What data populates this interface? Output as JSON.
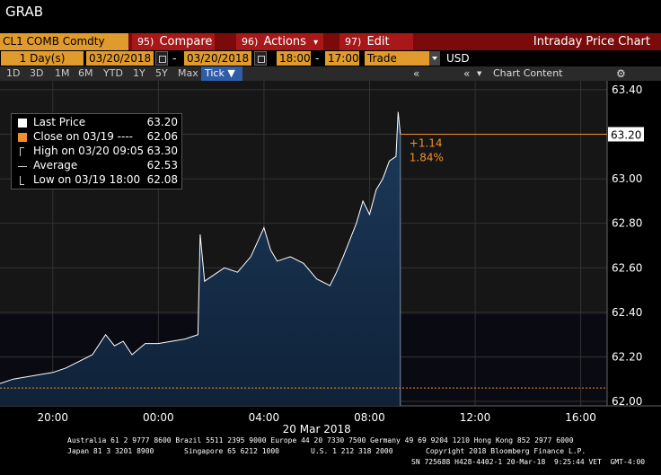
{
  "top": {
    "title": "GRAB"
  },
  "cmdbar": {
    "ticker": "CL1 COMB Comdty",
    "menus": [
      {
        "num": "95)",
        "label": "Compare"
      },
      {
        "num": "96)",
        "label": "Actions"
      },
      {
        "num": "97)",
        "label": "Edit"
      }
    ],
    "function_title": "Intraday Price Chart"
  },
  "range": {
    "days": "1",
    "days_unit": "Day(s)",
    "start_date": "03/20/2018",
    "sep": "-",
    "end_date": "03/20/2018",
    "start_time": "18:00",
    "time_sep": "-",
    "end_time": "17:00",
    "mode": "Trade",
    "currency": "USD"
  },
  "tabs": {
    "periods": [
      "1D",
      "3D",
      "1M",
      "6M",
      "YTD",
      "1Y",
      "5Y",
      "Max"
    ],
    "active": "Tick",
    "nav_left": "«",
    "nav_right": "«",
    "chart_content": "Chart Content"
  },
  "legend": {
    "items": [
      {
        "label": "Last Price",
        "value": "63.20",
        "color": "#ffffff"
      },
      {
        "label": "Close on 03/19 ----",
        "value": "62.06",
        "color": "#f0902a"
      },
      {
        "label": "High on 03/20 09:05",
        "value": "63.30",
        "color": "#cfcfcf"
      },
      {
        "label": "Average",
        "value": "62.53",
        "color": "#cfcfcf"
      },
      {
        "label": "Low on 03/19 18:00",
        "value": "62.08",
        "color": "#cfcfcf"
      }
    ]
  },
  "chart_data": {
    "type": "area",
    "series": [
      {
        "name": "Last Price",
        "x": [
          "18:00",
          "18:30",
          "19:00",
          "19:30",
          "20:00",
          "20:30",
          "21:00",
          "21:30",
          "22:00",
          "22:20",
          "22:40",
          "23:00",
          "23:30",
          "00:00",
          "00:30",
          "01:00",
          "01:30",
          "01:35",
          "01:45",
          "02:00",
          "02:30",
          "03:00",
          "03:30",
          "04:00",
          "04:15",
          "04:30",
          "05:00",
          "05:30",
          "06:00",
          "06:30",
          "06:45",
          "07:00",
          "07:30",
          "07:45",
          "08:00",
          "08:15",
          "08:30",
          "08:45",
          "09:00",
          "09:05",
          "09:10"
        ],
        "values": [
          62.08,
          62.1,
          62.11,
          62.12,
          62.13,
          62.15,
          62.18,
          62.21,
          62.3,
          62.25,
          62.27,
          62.21,
          62.26,
          62.26,
          62.27,
          62.28,
          62.3,
          62.75,
          62.54,
          62.56,
          62.6,
          62.58,
          62.65,
          62.78,
          62.68,
          62.63,
          62.65,
          62.62,
          62.55,
          62.52,
          62.58,
          62.65,
          62.8,
          62.9,
          62.84,
          62.95,
          63.0,
          63.08,
          63.1,
          63.3,
          63.2
        ]
      }
    ],
    "reference_lines": [
      {
        "name": "Close on 03/19",
        "value": 62.06
      }
    ],
    "last_price": "63.20",
    "change": "+1.14",
    "change_pct": "1.84%",
    "y_ticks": [
      "62.00",
      "62.20",
      "62.40",
      "62.60",
      "62.80",
      "63.00",
      "63.20",
      "63.40"
    ],
    "y_range": [
      61.98,
      63.44
    ],
    "x_ticks": [
      "20:00",
      "00:00",
      "04:00",
      "08:00",
      "12:00",
      "16:00"
    ],
    "date_label": "20 Mar 2018",
    "x_range": [
      "18:00",
      "17:00"
    ],
    "grid": true,
    "colors": {
      "line": "#ffffff",
      "fill_top": "#1d3a5c",
      "fill_bottom": "#0f2238",
      "close_line": "#f0902a",
      "grid": "#333333"
    }
  },
  "footer": {
    "line1": "Australia 61 2 9777 8600 Brazil 5511 2395 9000 Europe 44 20 7330 7500 Germany 49 69 9204 1210 Hong Kong 852 2977 6000",
    "line2a": "Japan 81 3 3201 8900",
    "line2b": "Singapore 65 6212 1000",
    "line2c": "U.S. 1 212 318 2000",
    "line2d": "Copyright 2018 Bloomberg Finance L.P.",
    "line3": "SN 725688 H428-4402-1 20-Mar-18  9:25:44 VET  GMT-4:00"
  }
}
